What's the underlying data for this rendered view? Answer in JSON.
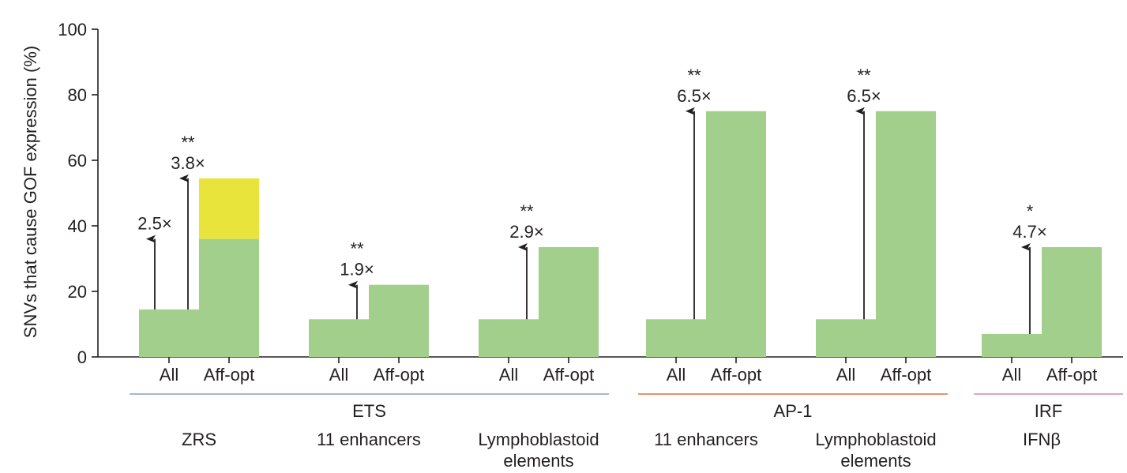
{
  "chart_data": {
    "type": "bar",
    "ylabel": "SNVs that cause GOF expression (%)",
    "ylim": [
      0,
      100
    ],
    "yticks": [
      0,
      20,
      40,
      60,
      80,
      100
    ],
    "colors": {
      "bar": "#a3cf8d",
      "highlight": "#e8e43c",
      "axis": "#231f20",
      "ets_line": "#a3b8d1",
      "ap1_line": "#e8916b",
      "irf_line": "#d6a6d6"
    },
    "panels": [
      {
        "subset": [
          "ZRS"
        ],
        "categories": [
          "All",
          "Aff-opt"
        ],
        "all_value": 14.5,
        "affopt_value": 36,
        "affopt_extra": 18.5,
        "arrows": [
          {
            "fold": "2.5×",
            "sig": "",
            "top": 36
          },
          {
            "fold": "3.8×",
            "sig": "**",
            "top": 54.5
          }
        ]
      },
      {
        "subset": [
          "11 enhancers"
        ],
        "categories": [
          "All",
          "Aff-opt"
        ],
        "all_value": 11.5,
        "affopt_value": 22,
        "affopt_extra": 0,
        "arrows": [
          {
            "fold": "1.9×",
            "sig": "**",
            "top": 22
          }
        ]
      },
      {
        "subset": [
          "Lymphoblastoid",
          "elements"
        ],
        "categories": [
          "All",
          "Aff-opt"
        ],
        "all_value": 11.5,
        "affopt_value": 33.5,
        "affopt_extra": 0,
        "arrows": [
          {
            "fold": "2.9×",
            "sig": "**",
            "top": 33.5
          }
        ]
      },
      {
        "subset": [
          "11 enhancers"
        ],
        "categories": [
          "All",
          "Aff-opt"
        ],
        "all_value": 11.5,
        "affopt_value": 75,
        "affopt_extra": 0,
        "arrows": [
          {
            "fold": "6.5×",
            "sig": "**",
            "top": 75
          }
        ]
      },
      {
        "subset": [
          "Lymphoblastoid",
          "elements"
        ],
        "categories": [
          "All",
          "Aff-opt"
        ],
        "all_value": 11.5,
        "affopt_value": 75,
        "affopt_extra": 0,
        "arrows": [
          {
            "fold": "6.5×",
            "sig": "**",
            "top": 75
          }
        ]
      },
      {
        "subset": [
          "IFNβ"
        ],
        "categories": [
          "All",
          "Aff-opt"
        ],
        "all_value": 7,
        "affopt_value": 33.5,
        "affopt_extra": 0,
        "arrows": [
          {
            "fold": "4.7×",
            "sig": "*",
            "top": 33.5
          }
        ]
      }
    ],
    "groups": [
      {
        "name": "ETS",
        "panels": [
          0,
          1,
          2
        ]
      },
      {
        "name": "AP-1",
        "panels": [
          3,
          4
        ]
      },
      {
        "name": "IRF",
        "panels": [
          5
        ]
      }
    ]
  }
}
